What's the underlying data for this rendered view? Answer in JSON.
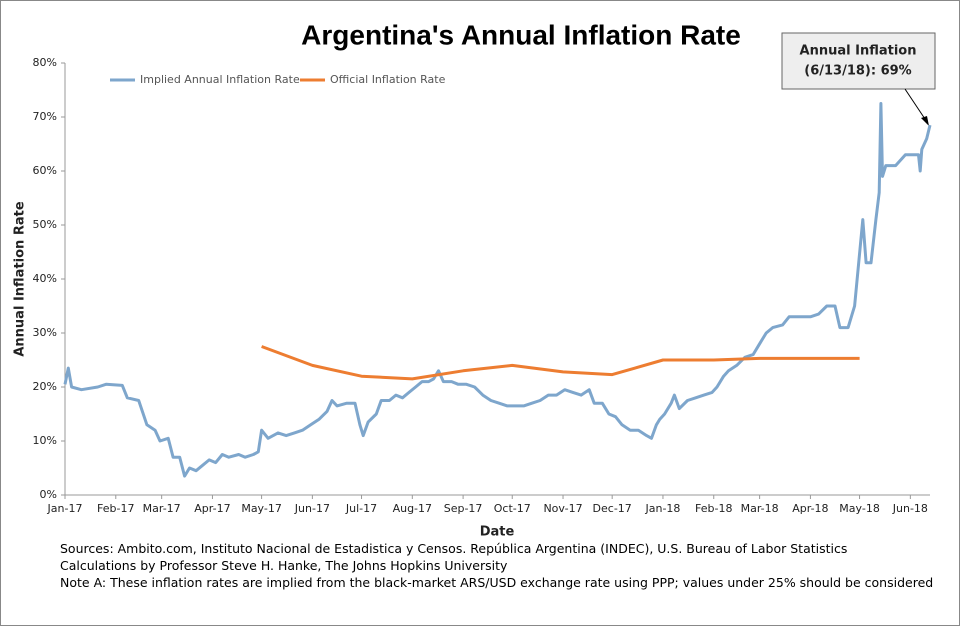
{
  "chart_data": {
    "type": "line",
    "title": "Argentina's Annual Inflation Rate",
    "xlabel": "Date",
    "ylabel": "Annual Inflation Rate",
    "annotation": [
      "Annual Inflation",
      "(6/13/18): 69%"
    ],
    "notes": [
      "Sources: Ambito.com, Instituto Nacional de Estadistica y Censos. República Argentina (INDEC), U.S. Bureau of Labor Statistics",
      "Calculations by Professor Steve H. Hanke, The Johns Hopkins University",
      "Note A: These inflation rates are implied from the black-market ARS/USD exchange rate using PPP; values under 25% should be considered"
    ],
    "xlim": [
      0,
      528
    ],
    "xticks": [
      {
        "value": 0,
        "label": "Jan-17"
      },
      {
        "value": 31,
        "label": "Feb-17"
      },
      {
        "value": 59,
        "label": "Mar-17"
      },
      {
        "value": 90,
        "label": "Apr-17"
      },
      {
        "value": 120,
        "label": "May-17"
      },
      {
        "value": 151,
        "label": "Jun-17"
      },
      {
        "value": 181,
        "label": "Jul-17"
      },
      {
        "value": 212,
        "label": "Aug-17"
      },
      {
        "value": 243,
        "label": "Sep-17"
      },
      {
        "value": 273,
        "label": "Oct-17"
      },
      {
        "value": 304,
        "label": "Nov-17"
      },
      {
        "value": 334,
        "label": "Dec-17"
      },
      {
        "value": 365,
        "label": "Jan-18"
      },
      {
        "value": 396,
        "label": "Feb-18"
      },
      {
        "value": 424,
        "label": "Mar-18"
      },
      {
        "value": 455,
        "label": "Apr-18"
      },
      {
        "value": 485,
        "label": "May-18"
      },
      {
        "value": 516,
        "label": "Jun-18"
      }
    ],
    "ylim": [
      0,
      80
    ],
    "yticks": [
      {
        "value": 0,
        "label": "0%"
      },
      {
        "value": 10,
        "label": "10%"
      },
      {
        "value": 20,
        "label": "20%"
      },
      {
        "value": 30,
        "label": "30%"
      },
      {
        "value": 40,
        "label": "40%"
      },
      {
        "value": 50,
        "label": "50%"
      },
      {
        "value": 60,
        "label": "60%"
      },
      {
        "value": 70,
        "label": "70%"
      },
      {
        "value": 80,
        "label": "80%"
      }
    ],
    "grid": false,
    "legend": "top-left",
    "series": [
      {
        "name": "Implied Annual Inflation Rate",
        "color": "#7ea6cc",
        "x": [
          0,
          2,
          4,
          10,
          20,
          25,
          35,
          38,
          45,
          50,
          55,
          58,
          63,
          66,
          70,
          73,
          76,
          80,
          84,
          88,
          92,
          96,
          100,
          106,
          110,
          115,
          118,
          120,
          124,
          130,
          135,
          140,
          145,
          150,
          155,
          160,
          163,
          166,
          172,
          177,
          180,
          182,
          185,
          190,
          193,
          198,
          202,
          206,
          210,
          214,
          218,
          222,
          225,
          228,
          231,
          236,
          240,
          245,
          250,
          255,
          260,
          265,
          270,
          275,
          280,
          285,
          290,
          295,
          300,
          305,
          310,
          315,
          320,
          323,
          328,
          332,
          336,
          340,
          345,
          350,
          355,
          358,
          361,
          363,
          366,
          370,
          372,
          375,
          380,
          385,
          390,
          395,
          398,
          402,
          405,
          410,
          415,
          420,
          424,
          428,
          432,
          438,
          442,
          448,
          455,
          460,
          465,
          470,
          473,
          478,
          482,
          487,
          489,
          492,
          495,
          497,
          498,
          499,
          501,
          507,
          513,
          521,
          522,
          523,
          526,
          528
        ],
        "values": [
          20.5,
          23.5,
          20,
          19.5,
          20,
          20.5,
          20.3,
          18,
          17.5,
          13,
          12,
          10,
          10.5,
          7,
          7,
          3.5,
          5,
          4.5,
          5.5,
          6.5,
          6,
          7.5,
          7,
          7.5,
          7,
          7.5,
          8,
          12,
          10.5,
          11.5,
          11,
          11.5,
          12,
          13,
          14,
          15.5,
          17.5,
          16.5,
          17,
          17,
          13,
          11,
          13.5,
          15,
          17.5,
          17.5,
          18.5,
          18,
          19,
          20,
          21,
          21,
          21.5,
          23,
          21,
          21,
          20.5,
          20.5,
          20,
          18.5,
          17.5,
          17,
          16.5,
          16.5,
          16.5,
          17,
          17.5,
          18.5,
          18.5,
          19.5,
          19,
          18.5,
          19.5,
          17,
          17,
          15,
          14.5,
          13,
          12,
          12,
          11,
          10.5,
          13,
          14,
          15,
          17,
          18.5,
          16,
          17.5,
          18,
          18.5,
          19,
          20,
          22,
          23,
          24,
          25.5,
          26,
          28,
          30,
          31,
          31.5,
          33,
          33,
          33,
          33.5,
          35,
          35,
          31,
          31,
          35,
          51,
          43,
          43,
          51,
          56,
          72.5,
          59,
          61,
          61,
          63,
          63,
          60,
          64,
          66,
          68.5
        ]
      },
      {
        "name": "Official Inflation Rate",
        "color": "#ed7d31",
        "x": [
          120,
          151,
          181,
          212,
          243,
          273,
          304,
          334,
          365,
          396,
          424,
          455,
          485
        ],
        "values": [
          27.5,
          24,
          22,
          21.5,
          23,
          24,
          22.8,
          22.3,
          25,
          25,
          25.3,
          25.3,
          25.3
        ]
      }
    ]
  }
}
